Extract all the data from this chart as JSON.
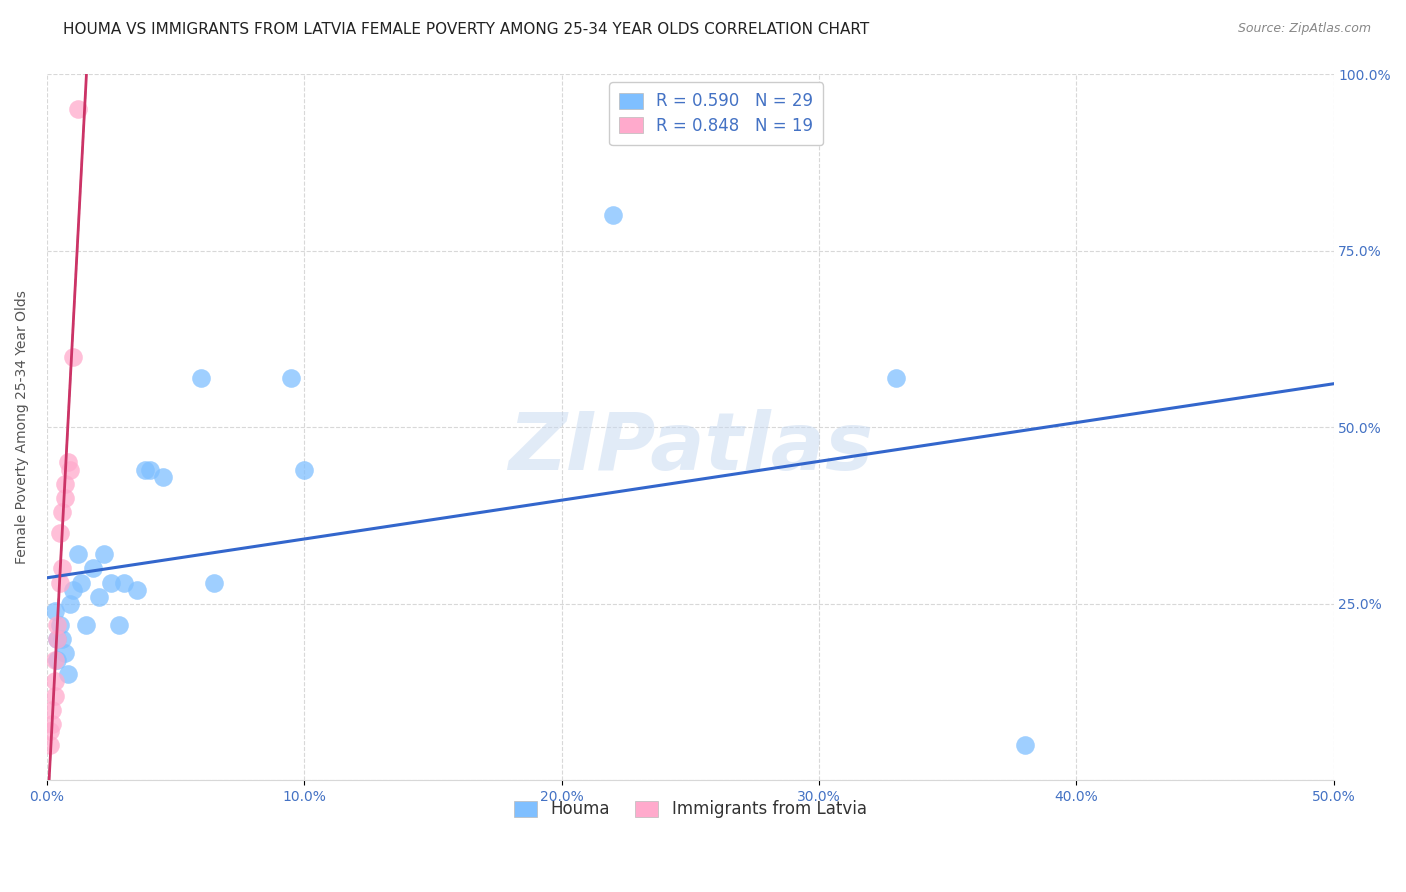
{
  "title": "HOUMA VS IMMIGRANTS FROM LATVIA FEMALE POVERTY AMONG 25-34 YEAR OLDS CORRELATION CHART",
  "source": "Source: ZipAtlas.com",
  "ylabel": "Female Poverty Among 25-34 Year Olds",
  "watermark": "ZIPatlas",
  "xlim": [
    0.0,
    0.5
  ],
  "ylim": [
    0.0,
    1.0
  ],
  "xticks": [
    0.0,
    0.1,
    0.2,
    0.3,
    0.4,
    0.5
  ],
  "yticks": [
    0.0,
    0.25,
    0.5,
    0.75,
    1.0
  ],
  "xtick_labels": [
    "0.0%",
    "10.0%",
    "20.0%",
    "30.0%",
    "40.0%",
    "50.0%"
  ],
  "ytick_labels_right": [
    "",
    "25.0%",
    "50.0%",
    "75.0%",
    "100.0%"
  ],
  "houma_color": "#7fbfff",
  "latvia_color": "#ffaacc",
  "trend_houma_color": "#3366cc",
  "trend_latvia_color": "#cc3366",
  "background_color": "#ffffff",
  "grid_color": "#d8d8d8",
  "legend_r_houma": "R = 0.590",
  "legend_n_houma": "N = 29",
  "legend_r_latvia": "R = 0.848",
  "legend_n_latvia": "N = 19",
  "houma_x": [
    0.003,
    0.004,
    0.004,
    0.005,
    0.006,
    0.007,
    0.008,
    0.009,
    0.01,
    0.012,
    0.013,
    0.015,
    0.018,
    0.02,
    0.022,
    0.025,
    0.028,
    0.03,
    0.035,
    0.038,
    0.04,
    0.045,
    0.06,
    0.065,
    0.095,
    0.1,
    0.22,
    0.33,
    0.38
  ],
  "houma_y": [
    0.24,
    0.2,
    0.17,
    0.22,
    0.2,
    0.18,
    0.15,
    0.25,
    0.27,
    0.32,
    0.28,
    0.22,
    0.3,
    0.26,
    0.32,
    0.28,
    0.22,
    0.28,
    0.27,
    0.44,
    0.44,
    0.43,
    0.57,
    0.28,
    0.57,
    0.44,
    0.8,
    0.57,
    0.05
  ],
  "latvia_x": [
    0.001,
    0.001,
    0.002,
    0.002,
    0.003,
    0.003,
    0.003,
    0.004,
    0.004,
    0.005,
    0.005,
    0.006,
    0.006,
    0.007,
    0.007,
    0.008,
    0.009,
    0.01,
    0.012
  ],
  "latvia_y": [
    0.05,
    0.07,
    0.08,
    0.1,
    0.12,
    0.14,
    0.17,
    0.2,
    0.22,
    0.28,
    0.35,
    0.3,
    0.38,
    0.4,
    0.42,
    0.45,
    0.44,
    0.6,
    0.95
  ],
  "title_fontsize": 11,
  "label_fontsize": 10,
  "tick_fontsize": 10,
  "legend_fontsize": 12,
  "ax_tick_color": "#4472c4"
}
